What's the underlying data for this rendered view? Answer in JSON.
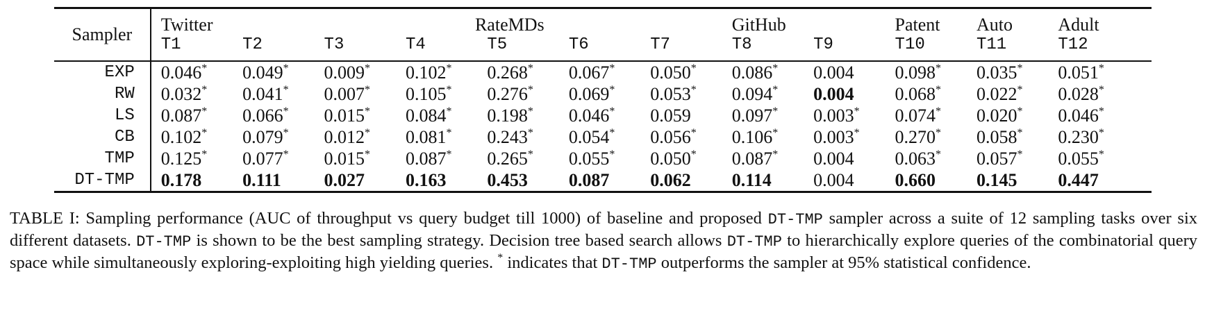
{
  "table": {
    "header": {
      "sampler_label": "Sampler",
      "groups": [
        {
          "label": "Twitter",
          "span": 3
        },
        {
          "label": "RateMDs",
          "span": 4
        },
        {
          "label": "GitHub",
          "span": 2
        },
        {
          "label": "Patent",
          "span": 1
        },
        {
          "label": "Auto",
          "span": 1
        },
        {
          "label": "Adult",
          "span": 1
        }
      ],
      "tasks": [
        "T1",
        "T2",
        "T3",
        "T4",
        "T5",
        "T6",
        "T7",
        "T8",
        "T9",
        "T10",
        "T11",
        "T12"
      ]
    },
    "rows": [
      {
        "sampler": "EXP",
        "cells": [
          {
            "v": "0.046",
            "star": "*",
            "bold": false
          },
          {
            "v": "0.049",
            "star": "*",
            "bold": false
          },
          {
            "v": "0.009",
            "star": "*",
            "bold": false
          },
          {
            "v": "0.102",
            "star": "*",
            "bold": false
          },
          {
            "v": "0.268",
            "star": "*",
            "bold": false
          },
          {
            "v": "0.067",
            "star": "*",
            "bold": false
          },
          {
            "v": "0.050",
            "star": "*",
            "bold": false
          },
          {
            "v": "0.086",
            "star": "*",
            "bold": false
          },
          {
            "v": "0.004",
            "star": "",
            "bold": false
          },
          {
            "v": "0.098",
            "star": "*",
            "bold": false
          },
          {
            "v": "0.035",
            "star": "*",
            "bold": false
          },
          {
            "v": "0.051",
            "star": "*",
            "bold": false
          }
        ]
      },
      {
        "sampler": "RW",
        "cells": [
          {
            "v": "0.032",
            "star": "*",
            "bold": false
          },
          {
            "v": "0.041",
            "star": "*",
            "bold": false
          },
          {
            "v": "0.007",
            "star": "*",
            "bold": false
          },
          {
            "v": "0.105",
            "star": "*",
            "bold": false
          },
          {
            "v": "0.276",
            "star": "*",
            "bold": false
          },
          {
            "v": "0.069",
            "star": "*",
            "bold": false
          },
          {
            "v": "0.053",
            "star": "*",
            "bold": false
          },
          {
            "v": "0.094",
            "star": "*",
            "bold": false
          },
          {
            "v": "0.004",
            "star": "",
            "bold": true
          },
          {
            "v": "0.068",
            "star": "*",
            "bold": false
          },
          {
            "v": "0.022",
            "star": "*",
            "bold": false
          },
          {
            "v": "0.028",
            "star": "*",
            "bold": false
          }
        ]
      },
      {
        "sampler": "LS",
        "cells": [
          {
            "v": "0.087",
            "star": "*",
            "bold": false
          },
          {
            "v": "0.066",
            "star": "*",
            "bold": false
          },
          {
            "v": "0.015",
            "star": "*",
            "bold": false
          },
          {
            "v": "0.084",
            "star": "*",
            "bold": false
          },
          {
            "v": "0.198",
            "star": "*",
            "bold": false
          },
          {
            "v": "0.046",
            "star": "*",
            "bold": false
          },
          {
            "v": "0.059",
            "star": "",
            "bold": false
          },
          {
            "v": "0.097",
            "star": "*",
            "bold": false
          },
          {
            "v": "0.003",
            "star": "*",
            "bold": false
          },
          {
            "v": "0.074",
            "star": "*",
            "bold": false
          },
          {
            "v": "0.020",
            "star": "*",
            "bold": false
          },
          {
            "v": "0.046",
            "star": "*",
            "bold": false
          }
        ]
      },
      {
        "sampler": "CB",
        "cells": [
          {
            "v": "0.102",
            "star": "*",
            "bold": false
          },
          {
            "v": "0.079",
            "star": "*",
            "bold": false
          },
          {
            "v": "0.012",
            "star": "*",
            "bold": false
          },
          {
            "v": "0.081",
            "star": "*",
            "bold": false
          },
          {
            "v": "0.243",
            "star": "*",
            "bold": false
          },
          {
            "v": "0.054",
            "star": "*",
            "bold": false
          },
          {
            "v": "0.056",
            "star": "*",
            "bold": false
          },
          {
            "v": "0.106",
            "star": "*",
            "bold": false
          },
          {
            "v": "0.003",
            "star": "*",
            "bold": false
          },
          {
            "v": "0.270",
            "star": "*",
            "bold": false
          },
          {
            "v": "0.058",
            "star": "*",
            "bold": false
          },
          {
            "v": "0.230",
            "star": "*",
            "bold": false
          }
        ]
      },
      {
        "sampler": "TMP",
        "cells": [
          {
            "v": "0.125",
            "star": "*",
            "bold": false
          },
          {
            "v": "0.077",
            "star": "*",
            "bold": false
          },
          {
            "v": "0.015",
            "star": "*",
            "bold": false
          },
          {
            "v": "0.087",
            "star": "*",
            "bold": false
          },
          {
            "v": "0.265",
            "star": "*",
            "bold": false
          },
          {
            "v": "0.055",
            "star": "*",
            "bold": false
          },
          {
            "v": "0.050",
            "star": "*",
            "bold": false
          },
          {
            "v": "0.087",
            "star": "*",
            "bold": false
          },
          {
            "v": "0.004",
            "star": "",
            "bold": false
          },
          {
            "v": "0.063",
            "star": "*",
            "bold": false
          },
          {
            "v": "0.057",
            "star": "*",
            "bold": false
          },
          {
            "v": "0.055",
            "star": "*",
            "bold": false
          }
        ]
      },
      {
        "sampler": "DT-TMP",
        "cells": [
          {
            "v": "0.178",
            "star": "",
            "bold": true
          },
          {
            "v": "0.111",
            "star": "",
            "bold": true
          },
          {
            "v": "0.027",
            "star": "",
            "bold": true
          },
          {
            "v": "0.163",
            "star": "",
            "bold": true
          },
          {
            "v": "0.453",
            "star": "",
            "bold": true
          },
          {
            "v": "0.087",
            "star": "",
            "bold": true
          },
          {
            "v": "0.062",
            "star": "",
            "bold": true
          },
          {
            "v": "0.114",
            "star": "",
            "bold": true
          },
          {
            "v": "0.004",
            "star": "",
            "bold": false
          },
          {
            "v": "0.660",
            "star": "",
            "bold": true
          },
          {
            "v": "0.145",
            "star": "",
            "bold": true
          },
          {
            "v": "0.447",
            "star": "",
            "bold": true
          }
        ]
      }
    ]
  },
  "caption": {
    "label": "TABLE I:",
    "part1": " Sampling performance (AUC of throughput vs query budget till 1000) of baseline and proposed ",
    "mono1": "DT-TMP",
    "part2": " sampler across a suite of 12 sampling tasks over six different datasets. ",
    "mono2": "DT-TMP",
    "part3": " is shown to be the best sampling strategy. Decision tree based search allows ",
    "mono3": "DT-TMP",
    "part4": " to hierarchically explore queries of the combinatorial query space while simultaneously exploring-exploiting high yielding queries. ",
    "star": "*",
    "part5": " indicates that ",
    "mono4": "DT-TMP",
    "part6": " outperforms the sampler at 95% statistical confidence."
  }
}
